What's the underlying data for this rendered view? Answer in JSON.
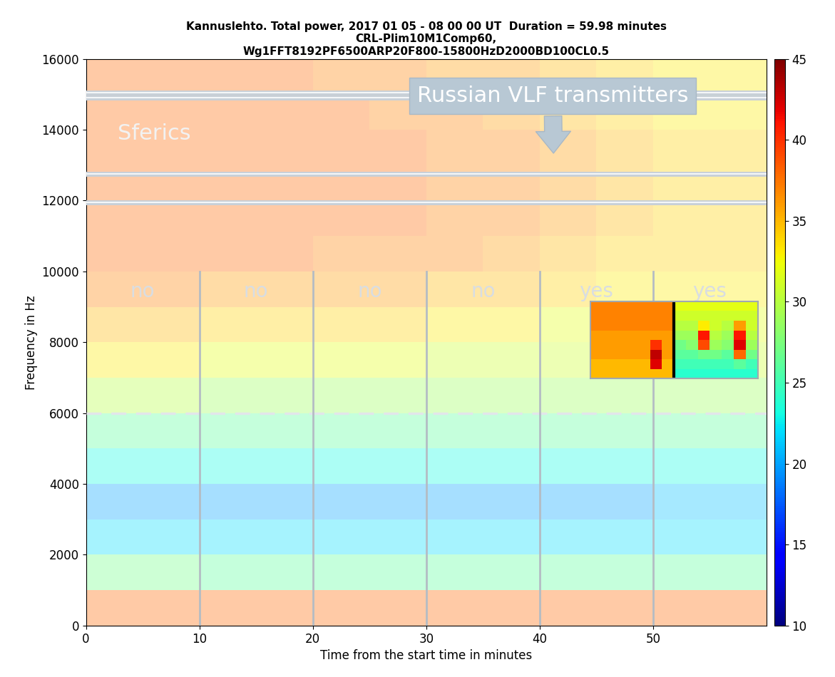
{
  "chart_data": {
    "type": "heatmap",
    "title": "Kannuslehto. Total power, 2017 01 05 - 08 00 00 UT  Duration = 59.98 minutes\nCRL-Plim10M1Comp60,\nWg1FFT8192PF6500ARP20F800-15800HzD2000BD100CL0.5",
    "x_label": "Time from the start time in minutes",
    "y_label": "Frequency in Hz",
    "xlim": [
      0,
      60
    ],
    "xticks": [
      0,
      10,
      20,
      30,
      40,
      50
    ],
    "ylim": [
      0,
      16000
    ],
    "yticks": [
      0,
      2000,
      4000,
      6000,
      8000,
      10000,
      12000,
      14000,
      16000
    ],
    "time_edges": [
      0,
      5,
      10,
      15,
      20,
      25,
      30,
      35,
      40,
      45,
      50,
      55,
      60
    ],
    "freq_edges": [
      0,
      1000,
      2000,
      3000,
      4000,
      5000,
      6000,
      7000,
      8000,
      9000,
      10000,
      11000,
      12000,
      13000,
      14000,
      15000,
      16000
    ],
    "cells": [
      [
        38,
        38,
        38,
        38,
        38,
        38,
        38,
        38,
        38,
        38,
        38,
        38
      ],
      [
        27,
        27,
        26,
        26,
        26,
        26,
        26,
        26,
        26,
        26,
        26,
        26
      ],
      [
        22,
        22,
        22,
        22,
        22,
        22,
        22,
        22,
        22,
        22,
        22,
        22
      ],
      [
        20,
        20,
        20,
        20,
        20,
        20,
        20,
        20,
        20,
        20,
        21,
        21
      ],
      [
        23,
        23,
        23,
        23,
        23,
        23,
        23,
        23,
        23,
        23,
        23,
        23
      ],
      [
        26,
        26,
        26,
        26,
        26,
        26,
        26,
        26,
        26,
        26,
        26,
        26
      ],
      [
        30,
        30,
        29,
        29,
        29,
        29,
        29,
        29,
        29,
        29,
        29,
        29
      ],
      [
        33,
        33,
        32,
        32,
        32,
        32,
        31,
        31,
        31,
        31,
        31,
        31
      ],
      [
        35,
        35,
        34,
        34,
        34,
        34,
        33,
        33,
        32,
        32,
        32,
        32
      ],
      [
        37,
        37,
        36,
        36,
        36,
        36,
        35,
        35,
        34,
        33,
        33,
        33
      ],
      [
        38,
        38,
        38,
        38,
        37,
        37,
        37,
        36,
        35,
        34,
        34,
        34
      ],
      [
        38,
        38,
        38,
        38,
        38,
        38,
        37,
        37,
        36,
        35,
        34,
        34
      ],
      [
        38,
        38,
        38,
        38,
        38,
        38,
        37,
        37,
        36,
        35,
        34,
        34
      ],
      [
        38,
        38,
        38,
        38,
        38,
        38,
        37,
        37,
        36,
        35,
        34,
        34
      ],
      [
        38,
        38,
        38,
        38,
        38,
        37,
        37,
        36,
        35,
        34,
        33,
        33
      ],
      [
        38,
        38,
        38,
        38,
        37,
        37,
        36,
        36,
        35,
        34,
        33,
        33
      ]
    ],
    "colorbar_range": [
      10,
      45
    ],
    "colorbar_ticks": [
      10,
      15,
      20,
      25,
      30,
      35,
      40,
      45
    ],
    "transmitter_lines": [
      11950,
      12750,
      14900,
      15050
    ],
    "threshold": 6000,
    "segments": [
      {
        "start": 0,
        "end": 10,
        "label": "no"
      },
      {
        "start": 10,
        "end": 20,
        "label": "no"
      },
      {
        "start": 20,
        "end": 30,
        "label": "no"
      },
      {
        "start": 30,
        "end": 40,
        "label": "no"
      },
      {
        "start": 40,
        "end": 50,
        "label": "yes"
      },
      {
        "start": 50,
        "end": 60,
        "label": "yes"
      }
    ],
    "annotations": {
      "sferics": "Sferics",
      "transmitters": "Russian VLF transmitters"
    },
    "inset_cells": [
      [
        35,
        35,
        35,
        35,
        35,
        35,
        35,
        24,
        24,
        24,
        24,
        24,
        24,
        24
      ],
      [
        35,
        35,
        35,
        35,
        35,
        42,
        35,
        25,
        25,
        25,
        25,
        25,
        26,
        25
      ],
      [
        36,
        36,
        36,
        36,
        36,
        43,
        36,
        26,
        26,
        27,
        27,
        26,
        38,
        27
      ],
      [
        36,
        36,
        36,
        36,
        36,
        40,
        36,
        27,
        28,
        39,
        29,
        28,
        42,
        29
      ],
      [
        36,
        36,
        36,
        36,
        36,
        36,
        36,
        29,
        29,
        41,
        30,
        29,
        41,
        30
      ],
      [
        37,
        37,
        37,
        37,
        37,
        37,
        37,
        30,
        30,
        33,
        31,
        30,
        36,
        31
      ],
      [
        37,
        37,
        37,
        37,
        37,
        37,
        37,
        31,
        31,
        31,
        31,
        31,
        31,
        31
      ],
      [
        37,
        37,
        37,
        37,
        37,
        37,
        37,
        32,
        32,
        32,
        32,
        32,
        32,
        32
      ]
    ]
  }
}
